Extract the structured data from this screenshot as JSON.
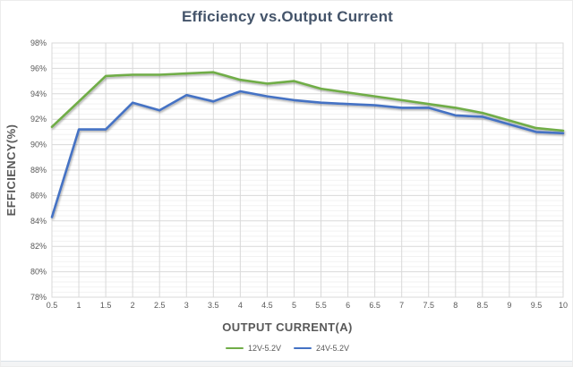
{
  "chart_data": {
    "type": "line",
    "title": "Efficiency vs.Output Current",
    "xlabel": "OUTPUT CURRENT(A)",
    "ylabel": "EFFICIENCY(%)",
    "x": [
      0.5,
      1,
      1.5,
      2,
      2.5,
      3,
      3.5,
      4,
      4.5,
      5,
      5.5,
      6,
      6.5,
      7,
      7.5,
      8,
      8.5,
      9,
      9.5,
      10
    ],
    "x_tick_labels": [
      "0.5",
      "1",
      "1.5",
      "2",
      "2.5",
      "3",
      "3.5",
      "4",
      "4.5",
      "5",
      "5.5",
      "6",
      "6.5",
      "7",
      "7.5",
      "8",
      "8.5",
      "9",
      "9.5",
      "10"
    ],
    "series": [
      {
        "name": "12V-5.2V",
        "color": "#70AD47",
        "values": [
          91.4,
          93.4,
          95.4,
          95.5,
          95.5,
          95.6,
          95.7,
          95.1,
          94.8,
          95.0,
          94.4,
          94.1,
          93.8,
          93.5,
          93.2,
          92.9,
          92.5,
          91.9,
          91.3,
          91.1
        ]
      },
      {
        "name": "24V-5.2V",
        "color": "#4472C4",
        "values": [
          84.3,
          91.2,
          91.2,
          93.3,
          92.7,
          93.9,
          93.4,
          94.2,
          93.8,
          93.5,
          93.3,
          93.2,
          93.1,
          92.9,
          92.9,
          92.3,
          92.2,
          91.6,
          91.0,
          90.9
        ]
      }
    ],
    "ylim": [
      78,
      98
    ],
    "y_major_step": 2,
    "y_minor_step": 0.4,
    "y_tick_suffix": "%",
    "y_tick_labels": [
      "98%",
      "96%",
      "94%",
      "92%",
      "90%",
      "88%",
      "86%",
      "84%",
      "82%",
      "80%",
      "78%"
    ],
    "grid": true,
    "legend_position": "bottom",
    "styles": {
      "title_color": "#44546A",
      "axis_text_color": "#595959",
      "grid_major_color": "#d9d9d9",
      "grid_minor_color": "#f2f2f2",
      "plot_border_color": "#d9d9d9",
      "line_width": 2.6
    }
  }
}
